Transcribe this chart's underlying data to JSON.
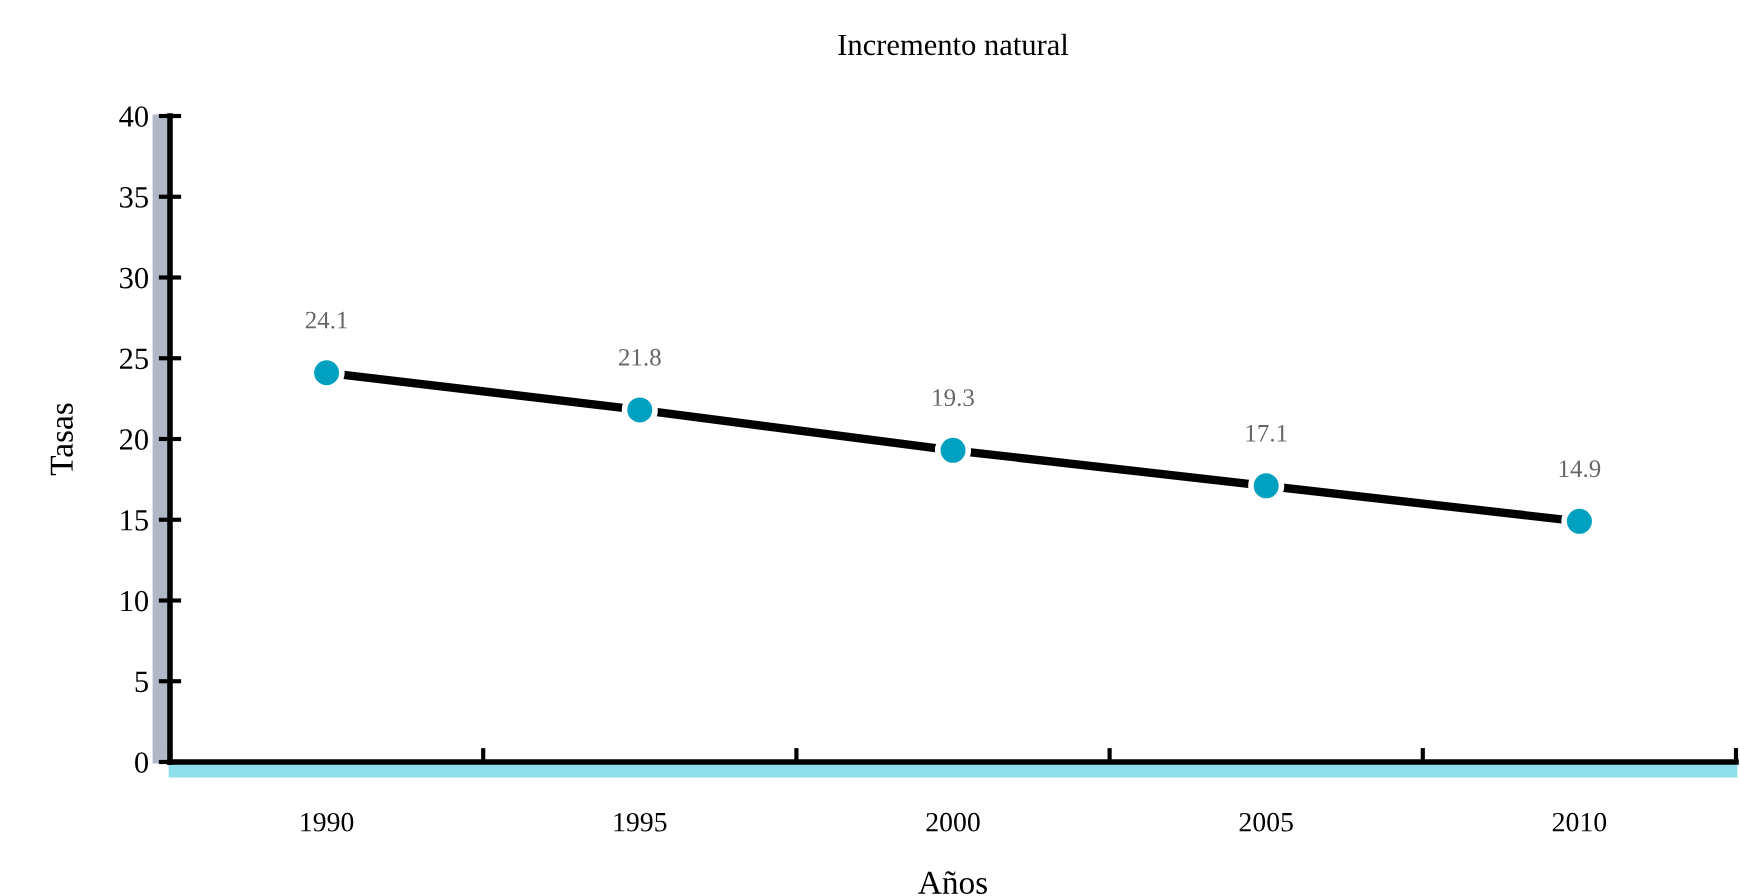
{
  "chart_data": {
    "type": "line",
    "title": "Incremento natural",
    "xlabel": "Años",
    "ylabel": "Tasas",
    "categories": [
      "1990",
      "1995",
      "2000",
      "2005",
      "2010"
    ],
    "series": [
      {
        "color": "#00a0c0",
        "values": [
          24.1,
          21.8,
          19.3,
          17.1,
          14.9
        ]
      }
    ],
    "ylim": [
      0,
      40
    ],
    "yticks": [
      0,
      5,
      10,
      15,
      20,
      25,
      30,
      35,
      40
    ],
    "data_labels": true,
    "marker": "circle",
    "line_style": "solid",
    "grid": false
  }
}
